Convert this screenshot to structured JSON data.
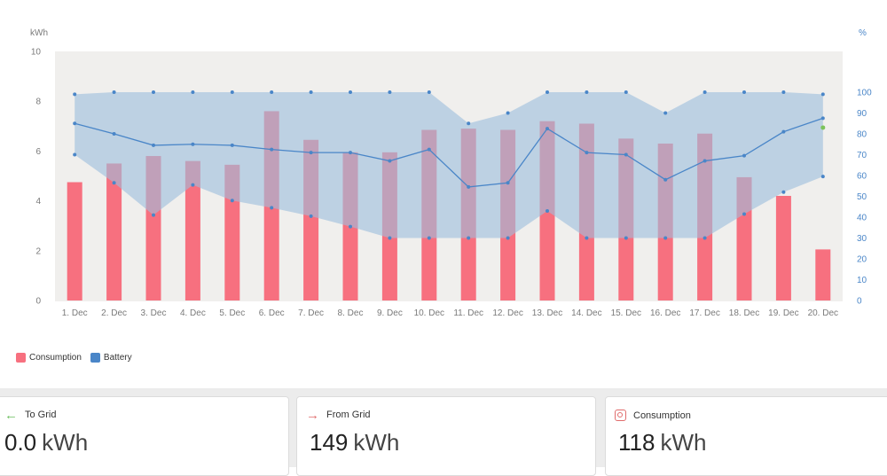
{
  "chart_data": {
    "type": "bar",
    "categories": [
      "1. Dec",
      "2. Dec",
      "3. Dec",
      "4. Dec",
      "5. Dec",
      "6. Dec",
      "7. Dec",
      "8. Dec",
      "9. Dec",
      "10. Dec",
      "11. Dec",
      "12. Dec",
      "13. Dec",
      "14. Dec",
      "15. Dec",
      "16. Dec",
      "17. Dec",
      "18. Dec",
      "19. Dec",
      "20. Dec"
    ],
    "ylabel": "kWh",
    "y2label": "%",
    "ylim": [
      0,
      10
    ],
    "y2lim": [
      0,
      100
    ],
    "yticks": [
      "0",
      "2",
      "4",
      "6",
      "8",
      "10"
    ],
    "y2ticks": [
      "0",
      "10",
      "20",
      "30",
      "40",
      "50",
      "60",
      "70",
      "80",
      "90",
      "100"
    ],
    "series": [
      {
        "name": "Consumption",
        "type": "bar",
        "axis": "left",
        "color": "#f7707f",
        "values": [
          4.75,
          5.5,
          5.8,
          5.6,
          5.45,
          7.6,
          6.45,
          5.95,
          5.95,
          6.85,
          6.9,
          6.85,
          7.2,
          7.1,
          6.5,
          6.3,
          6.7,
          4.95,
          4.2,
          2.05
        ]
      },
      {
        "name": "Battery",
        "type": "range-line",
        "axis": "right",
        "color": "#4a86c8",
        "max": [
          99,
          100,
          100,
          100,
          100,
          100,
          100,
          100,
          100,
          100,
          85,
          90,
          100,
          100,
          100,
          90,
          100,
          100,
          100,
          99
        ],
        "avg": [
          85,
          80,
          74.5,
          75,
          74.5,
          72.5,
          71,
          71,
          67,
          72.5,
          54.5,
          56.5,
          82.5,
          71,
          70,
          58,
          67,
          69.5,
          81,
          87.5
        ],
        "min": [
          70,
          56.5,
          41,
          55.5,
          48,
          44.5,
          40.5,
          35.5,
          30,
          30,
          30,
          30,
          43,
          30,
          30,
          30,
          30,
          41.5,
          52,
          59.5
        ]
      }
    ],
    "extra_point": {
      "index": 19,
      "value": 83,
      "color": "#7cc35b"
    },
    "legend_position": "bottom-left",
    "grid": false
  },
  "legend": {
    "consumption": "Consumption",
    "battery": "Battery"
  },
  "colors": {
    "consumption": "#f7707f",
    "battery": "#4a86c8",
    "plot_background": "#f0efed",
    "to_grid_arrow": "#6cbf5e",
    "from_grid_arrow": "#e06c6c"
  },
  "cards": {
    "to_grid": {
      "icon": "arrow-left-icon",
      "label": "To Grid",
      "value": "0.0",
      "unit": "kWh"
    },
    "from_grid": {
      "icon": "arrow-right-icon",
      "label": "From Grid",
      "value": "149",
      "unit": "kWh"
    },
    "consumption": {
      "icon": "socket-icon",
      "label": "Consumption",
      "value": "118",
      "unit": "kWh"
    }
  }
}
